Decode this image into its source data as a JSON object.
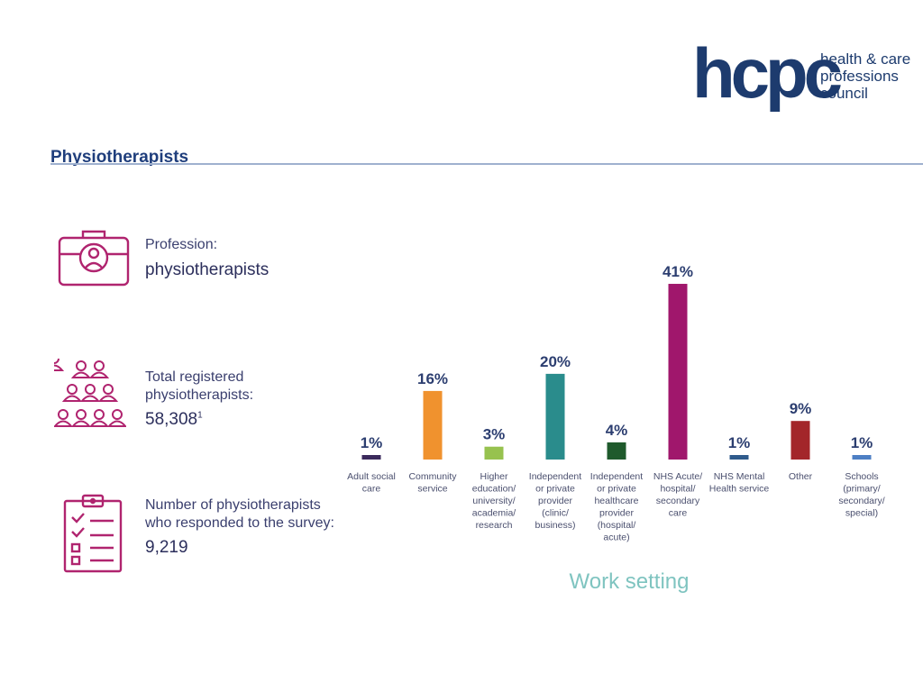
{
  "header": {
    "title": "Physiotherapists",
    "logo": {
      "mark": "hcpc",
      "lines": [
        "health & care",
        "professions",
        "council"
      ]
    }
  },
  "stats": {
    "profession": {
      "label": "Profession:",
      "value": "physiotherapists"
    },
    "registered": {
      "label_lines": [
        "Total registered",
        "physiotherapists:"
      ],
      "value": "58,308",
      "footnote": "1"
    },
    "responded": {
      "label_lines": [
        "Number of physiotherapists",
        "who responded to the survey:"
      ],
      "value": "9,219"
    }
  },
  "colors": {
    "brand": "#1d3b6e",
    "accent": "#b0246f",
    "caption": "#7fc4c0",
    "rule": "#9fb1cf"
  },
  "chart_data": {
    "type": "bar",
    "caption": "Work setting",
    "ylim": [
      0,
      45
    ],
    "grid": false,
    "categories": [
      [
        "Adult social",
        "care"
      ],
      [
        "Community",
        "service"
      ],
      [
        "Higher",
        "education/",
        "university/",
        "academia/",
        "research"
      ],
      [
        "Independent",
        "or private",
        "provider",
        "(clinic/",
        "business)"
      ],
      [
        "Independent",
        "or private",
        "healthcare",
        "provider",
        "(hospital/",
        "acute)"
      ],
      [
        "NHS Acute/",
        "hospital/",
        "secondary",
        "care"
      ],
      [
        "NHS Mental",
        "Health service"
      ],
      [
        "Other"
      ],
      [
        "Schools",
        "(primary/",
        "secondary/",
        "special)"
      ]
    ],
    "values": [
      1,
      16,
      3,
      20,
      4,
      41,
      1,
      9,
      1
    ],
    "value_labels": [
      "1%",
      "16%",
      "3%",
      "20%",
      "4%",
      "41%",
      "1%",
      "9%",
      "1%"
    ],
    "bar_colors": [
      "#3b2a5c",
      "#f0922e",
      "#97c24f",
      "#2a8c8c",
      "#1f5a2c",
      "#a0176c",
      "#2f5b8c",
      "#a3262a",
      "#4d7fc4"
    ]
  }
}
